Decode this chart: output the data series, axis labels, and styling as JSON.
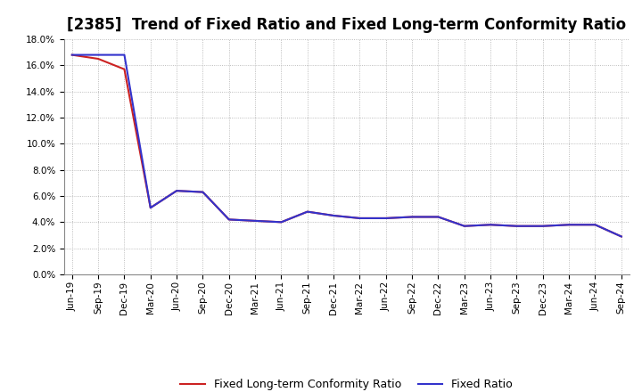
{
  "title": "[2385]  Trend of Fixed Ratio and Fixed Long-term Conformity Ratio",
  "x_labels": [
    "Jun-19",
    "Sep-19",
    "Dec-19",
    "Mar-20",
    "Jun-20",
    "Sep-20",
    "Dec-20",
    "Mar-21",
    "Jun-21",
    "Sep-21",
    "Dec-21",
    "Mar-22",
    "Jun-22",
    "Sep-22",
    "Dec-22",
    "Mar-23",
    "Jun-23",
    "Sep-23",
    "Dec-23",
    "Mar-24",
    "Jun-24",
    "Sep-24"
  ],
  "fixed_ratio": [
    16.8,
    16.8,
    16.8,
    5.1,
    6.4,
    6.3,
    4.2,
    4.1,
    4.0,
    4.8,
    4.5,
    4.3,
    4.3,
    4.4,
    4.4,
    3.7,
    3.8,
    3.7,
    3.7,
    3.8,
    3.8,
    2.9
  ],
  "fixed_lt_ratio": [
    16.8,
    16.5,
    15.7,
    5.1,
    6.4,
    6.3,
    4.2,
    4.1,
    4.0,
    4.8,
    4.5,
    4.3,
    4.3,
    4.4,
    4.4,
    3.7,
    3.8,
    3.7,
    3.7,
    3.8,
    3.8,
    2.9
  ],
  "fixed_ratio_color": "#3333cc",
  "fixed_lt_ratio_color": "#cc2222",
  "ylim": [
    0.0,
    18.0
  ],
  "yticks": [
    0.0,
    2.0,
    4.0,
    6.0,
    8.0,
    10.0,
    12.0,
    14.0,
    16.0,
    18.0
  ],
  "bg_color": "#ffffff",
  "plot_bg_color": "#ffffff",
  "grid_color": "#aaaaaa",
  "title_fontsize": 12,
  "legend_fontsize": 9,
  "tick_fontsize": 7.5,
  "linewidth": 1.5
}
